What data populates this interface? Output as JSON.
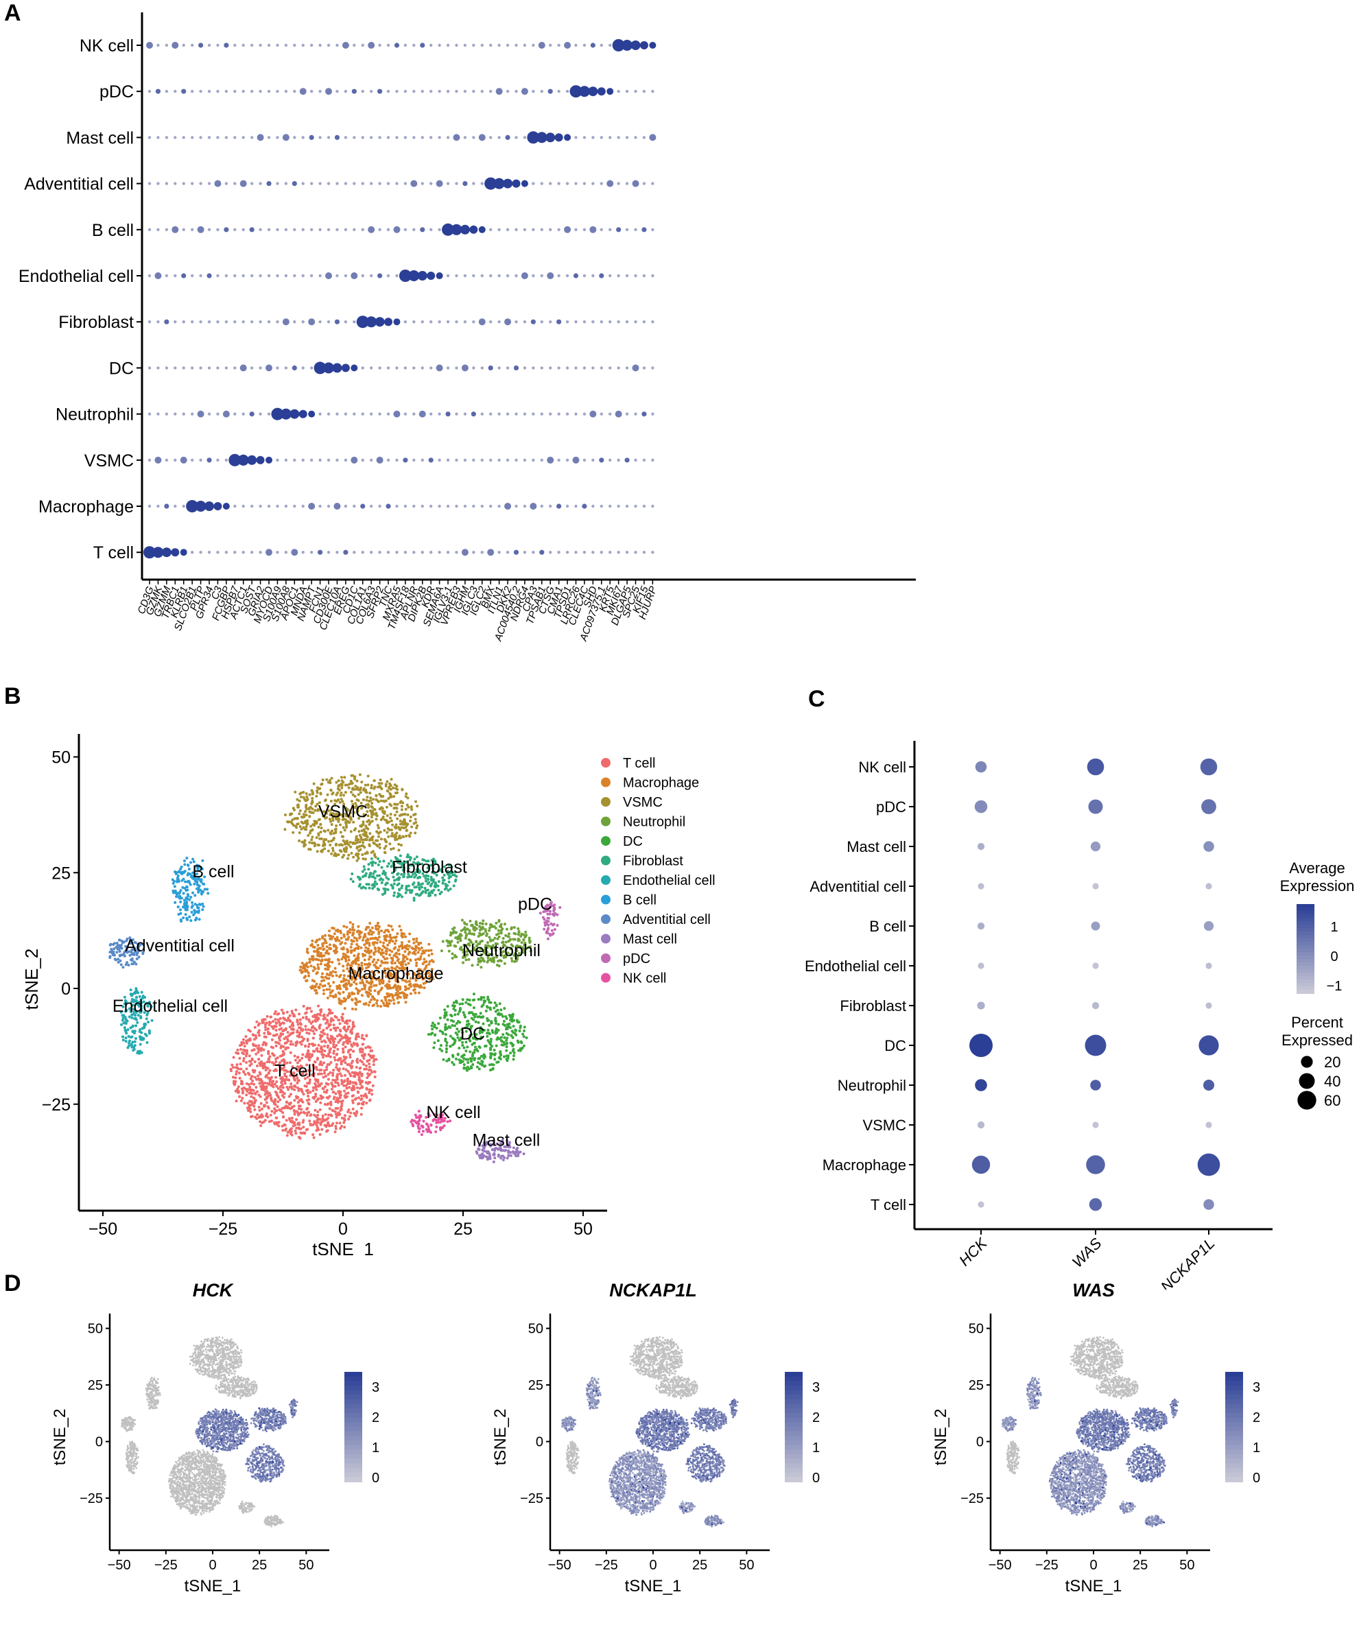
{
  "colors": {
    "low": "#c8c8d6",
    "high": "#2b3f96",
    "grey_cell": "#c0c0c0"
  },
  "chart_data": [
    {
      "panel": "A",
      "type": "dotplot",
      "cell_types": [
        "NK cell",
        "pDC",
        "Mast cell",
        "Adventitial cell",
        "B cell",
        "Endothelial cell",
        "Fibroblast",
        "DC",
        "Neutrophil",
        "VSMC",
        "Macrophage",
        "T cell"
      ],
      "genes": [
        "CD3G",
        "GZMK",
        "GZMM",
        "TRBC1",
        "KLRB1",
        "SLCO2B1",
        "PLTP",
        "GPR34",
        "C3",
        "FCGBP",
        "HSPB7",
        "ACTC1",
        "SOST",
        "GRIA2",
        "MYOCD",
        "S100A9",
        "S100A8",
        "APOC1",
        "MNDA",
        "NAMPT",
        "FCN1",
        "CD300E",
        "CLEC10A",
        "EREG",
        "CD1C",
        "COL1A1",
        "COL6A3",
        "SFRP2",
        "TNC",
        "MXRA5",
        "TM4SF18",
        "APLNR",
        "DIPK2B",
        "KDR",
        "SEMA6A",
        "IGLV3-1",
        "VPREB3",
        "IGHM",
        "IGLC3",
        "IGLC2",
        "BMX",
        "ITLN1",
        "DKK2",
        "AC004540.2",
        "NDRG4",
        "CPA3",
        "TPSAB1",
        "CTSG",
        "CMA1",
        "TPSD1",
        "LRRC26",
        "CLEC4C",
        "SHD",
        "AC097375.1",
        "KRT5",
        "MKI67",
        "DLGAP5",
        "SPC25",
        "KIF15",
        "HJURP"
      ],
      "marker_ranges": [
        {
          "cell": "T cell",
          "start": 0,
          "end": 4
        },
        {
          "cell": "Macrophage",
          "start": 5,
          "end": 9
        },
        {
          "cell": "VSMC",
          "start": 10,
          "end": 14
        },
        {
          "cell": "Neutrophil",
          "start": 15,
          "end": 19
        },
        {
          "cell": "DC",
          "start": 20,
          "end": 24
        },
        {
          "cell": "Fibroblast",
          "start": 25,
          "end": 29
        },
        {
          "cell": "Endothelial cell",
          "start": 30,
          "end": 34
        },
        {
          "cell": "B cell",
          "start": 35,
          "end": 39
        },
        {
          "cell": "Adventitial cell",
          "start": 40,
          "end": 44
        },
        {
          "cell": "Mast cell",
          "start": 45,
          "end": 49
        },
        {
          "cell": "pDC",
          "start": 50,
          "end": 54
        },
        {
          "cell": "NK cell",
          "start": 55,
          "end": 59
        }
      ]
    },
    {
      "panel": "B",
      "type": "scatter",
      "xlabel": "tSNE_1",
      "ylabel": "tSNE_2",
      "xticks": [
        -50,
        -25,
        0,
        25,
        50
      ],
      "yticks": [
        50,
        25,
        0,
        -25
      ],
      "xlim": [
        -55,
        55
      ],
      "ylim": [
        -48,
        52
      ],
      "clusters": [
        {
          "name": "T cell",
          "color": "#f06b6b",
          "cx": -8,
          "cy": -18,
          "rx": 15,
          "ry": 14,
          "n": 1400,
          "label_x": -10,
          "label_y": -19
        },
        {
          "name": "Macrophage",
          "color": "#d9822b",
          "cx": 5,
          "cy": 5,
          "rx": 14,
          "ry": 9,
          "n": 900,
          "label_x": 11,
          "label_y": 2
        },
        {
          "name": "VSMC",
          "color": "#a69130",
          "cx": 2,
          "cy": 37,
          "rx": 14,
          "ry": 9,
          "n": 700,
          "label_x": 0,
          "label_y": 37
        },
        {
          "name": "Neutrophil",
          "color": "#6fa33a",
          "cx": 30,
          "cy": 10,
          "rx": 9,
          "ry": 5,
          "n": 320,
          "label_x": 33,
          "label_y": 7
        },
        {
          "name": "DC",
          "color": "#3aa83a",
          "cx": 28,
          "cy": -10,
          "rx": 10,
          "ry": 8,
          "n": 420,
          "label_x": 27,
          "label_y": -11
        },
        {
          "name": "Fibroblast",
          "color": "#2fab80",
          "cx": 13,
          "cy": 24,
          "rx": 11,
          "ry": 4.5,
          "n": 300,
          "label_x": 18,
          "label_y": 25
        },
        {
          "name": "Endothelial cell",
          "color": "#25aab0",
          "cx": -43,
          "cy": -7,
          "rx": 3,
          "ry": 7,
          "n": 160,
          "label_x": -36,
          "label_y": -5
        },
        {
          "name": "B cell",
          "color": "#2a9ed8",
          "cx": -32,
          "cy": 21,
          "rx": 3.5,
          "ry": 7,
          "n": 180,
          "label_x": -27,
          "label_y": 24
        },
        {
          "name": "Adventitial cell",
          "color": "#5a8ac8",
          "cx": -45,
          "cy": 8,
          "rx": 3.5,
          "ry": 3,
          "n": 110,
          "label_x": -34,
          "label_y": 8
        },
        {
          "name": "Mast cell",
          "color": "#9b7bc0",
          "cx": 32,
          "cy": -35,
          "rx": 5,
          "ry": 2,
          "n": 120,
          "label_x": 34,
          "label_y": -34
        },
        {
          "name": "pDC",
          "color": "#c06ab4",
          "cx": 43,
          "cy": 15,
          "rx": 1.5,
          "ry": 4,
          "n": 60,
          "label_x": 40,
          "label_y": 17
        },
        {
          "name": "NK cell",
          "color": "#e652a0",
          "cx": 18,
          "cy": -29,
          "rx": 4,
          "ry": 2,
          "n": 80,
          "label_x": 23,
          "label_y": -28
        }
      ]
    },
    {
      "panel": "C",
      "type": "dotplot",
      "genes": [
        "HCK",
        "WAS",
        "NCKAP1L"
      ],
      "cell_types": [
        "NK cell",
        "pDC",
        "Mast cell",
        "Adventitial cell",
        "B cell",
        "Endothelial cell",
        "Fibroblast",
        "DC",
        "Neutrophil",
        "VSMC",
        "Macrophage",
        "T cell"
      ],
      "percent": [
        [
          12,
          32,
          32
        ],
        [
          16,
          22,
          24
        ],
        [
          3,
          8,
          10
        ],
        [
          2,
          2,
          2
        ],
        [
          3,
          6,
          8
        ],
        [
          2,
          2,
          2
        ],
        [
          4,
          3,
          2
        ],
        [
          68,
          55,
          48
        ],
        [
          14,
          10,
          11
        ],
        [
          3,
          2,
          2
        ],
        [
          38,
          42,
          62
        ],
        [
          2,
          16,
          10
        ]
      ],
      "avg_expression": [
        [
          0.2,
          1.1,
          0.9
        ],
        [
          0.1,
          0.6,
          0.6
        ],
        [
          -0.6,
          -0.2,
          0
        ],
        [
          -0.9,
          -1,
          -0.9
        ],
        [
          -0.6,
          -0.3,
          -0.3
        ],
        [
          -0.9,
          -1,
          -0.9
        ],
        [
          -0.6,
          -0.8,
          -0.9
        ],
        [
          1.6,
          1.3,
          1.3
        ],
        [
          1.5,
          1,
          1
        ],
        [
          -0.8,
          -1,
          -1
        ],
        [
          1,
          0.9,
          1.3
        ],
        [
          -1,
          0.8,
          0.1
        ]
      ],
      "legend_color_title": [
        "Average",
        "Expression"
      ],
      "color_ticks": [
        "1",
        "0",
        "−1"
      ],
      "legend_size_title": [
        "Percent",
        "Expressed"
      ],
      "size_ticks": [
        "20",
        "40",
        "60"
      ]
    },
    {
      "panel": "D",
      "type": "feature_plot",
      "xlabel": "tSNE_1",
      "ylabel": "tSNE_2",
      "xticks": [
        -50,
        -25,
        0,
        25,
        50
      ],
      "yticks": [
        50,
        25,
        0,
        -25
      ],
      "colorbar_ticks": [
        "3",
        "2",
        "1",
        "0"
      ],
      "plots": [
        {
          "title": "HCK",
          "expressed_clusters": [
            "Macrophage",
            "DC",
            "Neutrophil",
            "pDC"
          ]
        },
        {
          "title": "NCKAP1L",
          "expressed_clusters": [
            "Macrophage",
            "DC",
            "Neutrophil",
            "pDC",
            "T cell",
            "NK cell",
            "Mast cell",
            "B cell",
            "Adventitial cell"
          ]
        },
        {
          "title": "WAS",
          "expressed_clusters": [
            "Macrophage",
            "DC",
            "Neutrophil",
            "pDC",
            "T cell",
            "NK cell",
            "Mast cell",
            "B cell",
            "Adventitial cell"
          ]
        }
      ]
    }
  ],
  "panel_letters": [
    "A",
    "B",
    "C",
    "D"
  ]
}
